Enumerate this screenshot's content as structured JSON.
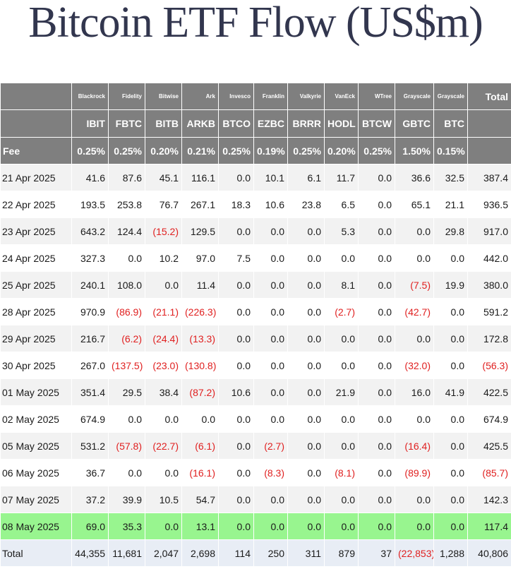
{
  "title": "Bitcoin ETF Flow (US$m)",
  "columns": [
    {
      "issuer": "Blackrock",
      "ticker": "IBIT",
      "fee": "0.25%"
    },
    {
      "issuer": "Fidelity",
      "ticker": "FBTC",
      "fee": "0.25%"
    },
    {
      "issuer": "Bitwise",
      "ticker": "BITB",
      "fee": "0.20%"
    },
    {
      "issuer": "Ark",
      "ticker": "ARKB",
      "fee": "0.21%"
    },
    {
      "issuer": "Invesco",
      "ticker": "BTCO",
      "fee": "0.25%"
    },
    {
      "issuer": "Franklin",
      "ticker": "EZBC",
      "fee": "0.19%"
    },
    {
      "issuer": "Valkyrie",
      "ticker": "BRRR",
      "fee": "0.25%"
    },
    {
      "issuer": "VanEck",
      "ticker": "HODL",
      "fee": "0.20%"
    },
    {
      "issuer": "WTree",
      "ticker": "BTCW",
      "fee": "0.25%"
    },
    {
      "issuer": "Grayscale",
      "ticker": "GBTC",
      "fee": "1.50%"
    },
    {
      "issuer": "Grayscale",
      "ticker": "BTC",
      "fee": "0.15%"
    }
  ],
  "total_header": "Total",
  "fee_label": "Fee",
  "rows": [
    {
      "date": "21 Apr 2025",
      "values": [
        "41.6",
        "87.6",
        "45.1",
        "116.1",
        "0.0",
        "10.1",
        "6.1",
        "11.7",
        "0.0",
        "36.6",
        "32.5"
      ],
      "total": "387.4"
    },
    {
      "date": "22 Apr 2025",
      "values": [
        "193.5",
        "253.8",
        "76.7",
        "267.1",
        "18.3",
        "10.6",
        "23.8",
        "6.5",
        "0.0",
        "65.1",
        "21.1"
      ],
      "total": "936.5"
    },
    {
      "date": "23 Apr 2025",
      "values": [
        "643.2",
        "124.4",
        "(15.2)",
        "129.5",
        "0.0",
        "0.0",
        "0.0",
        "5.3",
        "0.0",
        "0.0",
        "29.8"
      ],
      "total": "917.0"
    },
    {
      "date": "24 Apr 2025",
      "values": [
        "327.3",
        "0.0",
        "10.2",
        "97.0",
        "7.5",
        "0.0",
        "0.0",
        "0.0",
        "0.0",
        "0.0",
        "0.0"
      ],
      "total": "442.0"
    },
    {
      "date": "25 Apr 2025",
      "values": [
        "240.1",
        "108.0",
        "0.0",
        "11.4",
        "0.0",
        "0.0",
        "0.0",
        "8.1",
        "0.0",
        "(7.5)",
        "19.9"
      ],
      "total": "380.0"
    },
    {
      "date": "28 Apr 2025",
      "values": [
        "970.9",
        "(86.9)",
        "(21.1)",
        "(226.3)",
        "0.0",
        "0.0",
        "0.0",
        "(2.7)",
        "0.0",
        "(42.7)",
        "0.0"
      ],
      "total": "591.2"
    },
    {
      "date": "29 Apr 2025",
      "values": [
        "216.7",
        "(6.2)",
        "(24.4)",
        "(13.3)",
        "0.0",
        "0.0",
        "0.0",
        "0.0",
        "0.0",
        "0.0",
        "0.0"
      ],
      "total": "172.8"
    },
    {
      "date": "30 Apr 2025",
      "values": [
        "267.0",
        "(137.5)",
        "(23.0)",
        "(130.8)",
        "0.0",
        "0.0",
        "0.0",
        "0.0",
        "0.0",
        "(32.0)",
        "0.0"
      ],
      "total": "(56.3)"
    },
    {
      "date": "01 May 2025",
      "values": [
        "351.4",
        "29.5",
        "38.4",
        "(87.2)",
        "10.6",
        "0.0",
        "0.0",
        "21.9",
        "0.0",
        "16.0",
        "41.9"
      ],
      "total": "422.5"
    },
    {
      "date": "02 May 2025",
      "values": [
        "674.9",
        "0.0",
        "0.0",
        "0.0",
        "0.0",
        "0.0",
        "0.0",
        "0.0",
        "0.0",
        "0.0",
        "0.0"
      ],
      "total": "674.9"
    },
    {
      "date": "05 May 2025",
      "values": [
        "531.2",
        "(57.8)",
        "(22.7)",
        "(6.1)",
        "0.0",
        "(2.7)",
        "0.0",
        "0.0",
        "0.0",
        "(16.4)",
        "0.0"
      ],
      "total": "425.5"
    },
    {
      "date": "06 May 2025",
      "values": [
        "36.7",
        "0.0",
        "0.0",
        "(16.1)",
        "0.0",
        "(8.3)",
        "0.0",
        "(8.1)",
        "0.0",
        "(89.9)",
        "0.0"
      ],
      "total": "(85.7)"
    },
    {
      "date": "07 May 2025",
      "values": [
        "37.2",
        "39.9",
        "10.5",
        "54.7",
        "0.0",
        "0.0",
        "0.0",
        "0.0",
        "0.0",
        "0.0",
        "0.0"
      ],
      "total": "142.3"
    },
    {
      "date": "08 May 2025",
      "values": [
        "69.0",
        "35.3",
        "0.0",
        "13.1",
        "0.0",
        "0.0",
        "0.0",
        "0.0",
        "0.0",
        "0.0",
        "0.0"
      ],
      "total": "117.4",
      "highlight": true
    }
  ],
  "totals": {
    "label": "Total",
    "values": [
      "44,355",
      "11,681",
      "2,047",
      "2,698",
      "114",
      "250",
      "311",
      "879",
      "37",
      "(22,853)",
      "1,288"
    ],
    "total": "40,806"
  },
  "colors": {
    "header_bg": "#7f7f7f",
    "highlight_row": "#98f58f",
    "negative": "#e02020",
    "totals_bg": "#e8edf5",
    "title": "#32364e"
  }
}
